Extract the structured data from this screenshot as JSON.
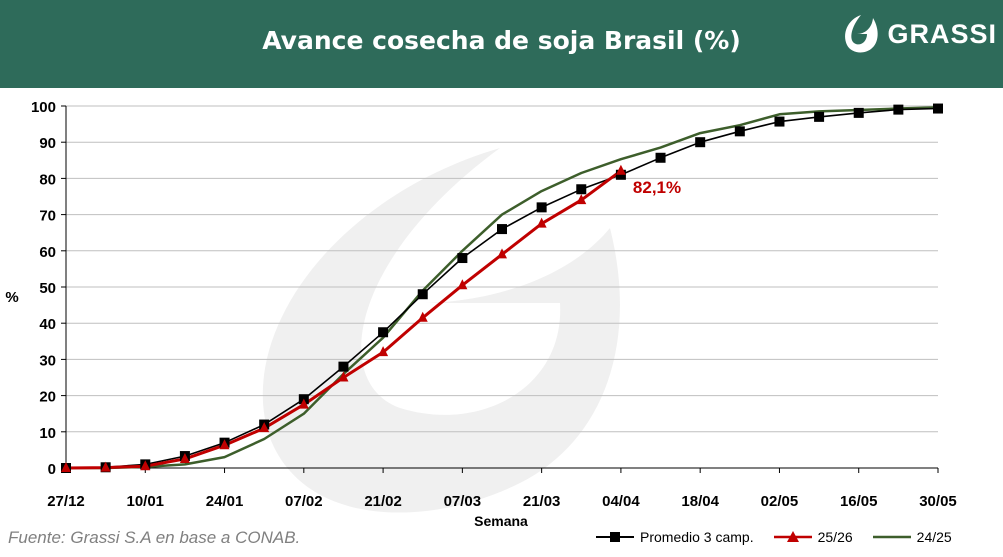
{
  "header": {
    "title": "Avance cosecha de soja Brasil (%)",
    "brand": "GRASSI"
  },
  "footer": {
    "source": "Fuente: Grassi S.A en base a CONAB."
  },
  "colors": {
    "header_bg": "#2e6b5a",
    "promedio": "#000000",
    "s2526": "#c00000",
    "s2425": "#3d5e2b"
  },
  "chart_data": {
    "type": "line",
    "title": "Avance cosecha de soja Brasil (%)",
    "xlabel": "Semana",
    "ylabel": "%",
    "ylim": [
      0,
      100
    ],
    "yticks": [
      0,
      10,
      20,
      30,
      40,
      50,
      60,
      70,
      80,
      90,
      100
    ],
    "x_tick_labels": [
      "27/12",
      "10/01",
      "24/01",
      "07/02",
      "21/02",
      "07/03",
      "21/03",
      "04/04",
      "18/04",
      "02/05",
      "16/05",
      "30/05"
    ],
    "grid": true,
    "legend_position": "bottom-right",
    "annotation": {
      "text": "82,1%",
      "series": "25/26",
      "week_index": 14,
      "value": 82.1
    },
    "series": [
      {
        "name": "Promedio 3 camp.",
        "marker": "square",
        "color": "#000000",
        "values": [
          0,
          0.2,
          1,
          3.3,
          7,
          12,
          19,
          28,
          37.5,
          48,
          58,
          66,
          72,
          77,
          81,
          85.7,
          90,
          93,
          95.7,
          97,
          98.1,
          99,
          99.3
        ]
      },
      {
        "name": "25/26",
        "marker": "triangle",
        "color": "#c00000",
        "values": [
          0,
          0.1,
          0.5,
          2.5,
          6.3,
          11,
          17.5,
          25,
          32,
          41.5,
          50.5,
          59,
          67.5,
          74,
          82.1
        ]
      },
      {
        "name": "24/25",
        "marker": "none",
        "color": "#3d5e2b",
        "values": [
          0,
          0,
          0.3,
          1,
          3,
          8,
          15,
          26,
          36,
          49,
          60,
          70,
          76.5,
          81.5,
          85.3,
          88.5,
          92.5,
          94.7,
          97.7,
          98.5,
          98.9,
          99.3,
          99.6
        ]
      }
    ]
  }
}
